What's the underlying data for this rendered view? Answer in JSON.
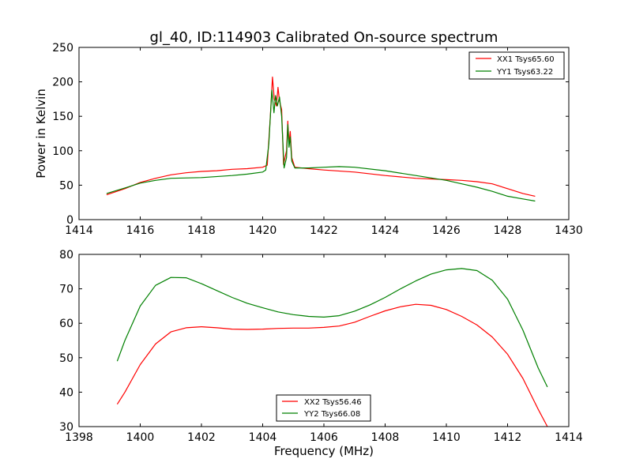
{
  "chart_data": [
    {
      "type": "line",
      "title": "gl_40, ID:114903 Calibrated On-source spectrum",
      "xlabel": "",
      "ylabel": "Power in Kelvin",
      "xlim": [
        1414,
        1430
      ],
      "ylim": [
        0,
        250
      ],
      "xticks": [
        "1414",
        "1416",
        "1418",
        "1420",
        "1422",
        "1424",
        "1426",
        "1428",
        "1430"
      ],
      "yticks": [
        "0",
        "50",
        "100",
        "150",
        "200",
        "250"
      ],
      "legend_position": "top-right",
      "series": [
        {
          "name": "XX1 Tsys65.60",
          "color": "#ff0000",
          "points": [
            [
              1414.9,
              36
            ],
            [
              1415.5,
              45
            ],
            [
              1416,
              54
            ],
            [
              1416.5,
              60
            ],
            [
              1417,
              65
            ],
            [
              1417.5,
              68
            ],
            [
              1418,
              70
            ],
            [
              1418.5,
              71
            ],
            [
              1419,
              73
            ],
            [
              1419.5,
              74
            ],
            [
              1420,
              76
            ],
            [
              1420.15,
              79
            ],
            [
              1420.25,
              150
            ],
            [
              1420.32,
              207
            ],
            [
              1420.38,
              175
            ],
            [
              1420.45,
              165
            ],
            [
              1420.5,
              192
            ],
            [
              1420.55,
              172
            ],
            [
              1420.62,
              160
            ],
            [
              1420.68,
              80
            ],
            [
              1420.78,
              100
            ],
            [
              1420.82,
              143
            ],
            [
              1420.86,
              110
            ],
            [
              1420.9,
              128
            ],
            [
              1420.95,
              90
            ],
            [
              1421.05,
              76
            ],
            [
              1421.5,
              74
            ],
            [
              1422,
              72
            ],
            [
              1423,
              69
            ],
            [
              1424,
              64
            ],
            [
              1425,
              60
            ],
            [
              1426,
              58
            ],
            [
              1426.5,
              57
            ],
            [
              1427,
              55
            ],
            [
              1427.5,
              52
            ],
            [
              1428,
              45
            ],
            [
              1428.5,
              38
            ],
            [
              1428.9,
              34
            ]
          ]
        },
        {
          "name": "YY1 Tsys63.22",
          "color": "#008000",
          "points": [
            [
              1414.9,
              38
            ],
            [
              1415.5,
              46
            ],
            [
              1416,
              53
            ],
            [
              1416.5,
              57
            ],
            [
              1417,
              60
            ],
            [
              1418,
              61
            ],
            [
              1419,
              64
            ],
            [
              1419.5,
              66
            ],
            [
              1420,
              69
            ],
            [
              1420.1,
              72
            ],
            [
              1420.2,
              110
            ],
            [
              1420.3,
              188
            ],
            [
              1420.37,
              155
            ],
            [
              1420.42,
              180
            ],
            [
              1420.48,
              165
            ],
            [
              1420.55,
              178
            ],
            [
              1420.62,
              150
            ],
            [
              1420.7,
              75
            ],
            [
              1420.78,
              90
            ],
            [
              1420.82,
              138
            ],
            [
              1420.86,
              105
            ],
            [
              1420.9,
              120
            ],
            [
              1420.95,
              85
            ],
            [
              1421.05,
              75
            ],
            [
              1421.5,
              75
            ],
            [
              1422,
              76
            ],
            [
              1422.5,
              77
            ],
            [
              1423,
              76
            ],
            [
              1424,
              71
            ],
            [
              1425,
              64
            ],
            [
              1426,
              57
            ],
            [
              1426.5,
              52
            ],
            [
              1427,
              47
            ],
            [
              1427.5,
              41
            ],
            [
              1428,
              34
            ],
            [
              1428.5,
              30
            ],
            [
              1428.9,
              27
            ]
          ]
        }
      ]
    },
    {
      "type": "line",
      "title": "",
      "xlabel": "Frequency (MHz)",
      "ylabel": "",
      "xlim": [
        1398,
        1414
      ],
      "ylim": [
        30,
        80
      ],
      "xticks": [
        "1398",
        "1400",
        "1402",
        "1404",
        "1406",
        "1408",
        "1410",
        "1412",
        "1414"
      ],
      "yticks": [
        "30",
        "40",
        "50",
        "60",
        "70",
        "80"
      ],
      "legend_position": "bottom-center",
      "series": [
        {
          "name": "XX2 Tsys56.46",
          "color": "#ff0000",
          "points": [
            [
              1399.25,
              36.5
            ],
            [
              1399.5,
              40
            ],
            [
              1400,
              48
            ],
            [
              1400.5,
              54
            ],
            [
              1401,
              57.5
            ],
            [
              1401.5,
              58.7
            ],
            [
              1402,
              59
            ],
            [
              1402.5,
              58.7
            ],
            [
              1403,
              58.3
            ],
            [
              1403.5,
              58.2
            ],
            [
              1404,
              58.3
            ],
            [
              1404.5,
              58.5
            ],
            [
              1405,
              58.6
            ],
            [
              1405.5,
              58.6
            ],
            [
              1406,
              58.8
            ],
            [
              1406.5,
              59.2
            ],
            [
              1407,
              60.3
            ],
            [
              1407.5,
              62
            ],
            [
              1408,
              63.6
            ],
            [
              1408.5,
              64.8
            ],
            [
              1409,
              65.5
            ],
            [
              1409.5,
              65.2
            ],
            [
              1410,
              64
            ],
            [
              1410.5,
              62
            ],
            [
              1411,
              59.5
            ],
            [
              1411.5,
              56
            ],
            [
              1412,
              51
            ],
            [
              1412.5,
              44
            ],
            [
              1413,
              35
            ],
            [
              1413.3,
              30
            ]
          ]
        },
        {
          "name": "YY2 Tsys66.08",
          "color": "#008000",
          "points": [
            [
              1399.25,
              49
            ],
            [
              1399.5,
              55
            ],
            [
              1400,
              65
            ],
            [
              1400.5,
              71
            ],
            [
              1401,
              73.3
            ],
            [
              1401.5,
              73.2
            ],
            [
              1402,
              71.5
            ],
            [
              1402.5,
              69.5
            ],
            [
              1403,
              67.5
            ],
            [
              1403.5,
              65.8
            ],
            [
              1404,
              64.5
            ],
            [
              1404.5,
              63.3
            ],
            [
              1405,
              62.5
            ],
            [
              1405.5,
              62
            ],
            [
              1406,
              61.8
            ],
            [
              1406.5,
              62.2
            ],
            [
              1407,
              63.5
            ],
            [
              1407.5,
              65.3
            ],
            [
              1408,
              67.5
            ],
            [
              1408.5,
              70
            ],
            [
              1409,
              72.3
            ],
            [
              1409.5,
              74.3
            ],
            [
              1410,
              75.5
            ],
            [
              1410.5,
              75.9
            ],
            [
              1411,
              75.3
            ],
            [
              1411.5,
              72.5
            ],
            [
              1412,
              67
            ],
            [
              1412.5,
              58
            ],
            [
              1413,
              47
            ],
            [
              1413.3,
              41.5
            ]
          ]
        }
      ]
    }
  ]
}
